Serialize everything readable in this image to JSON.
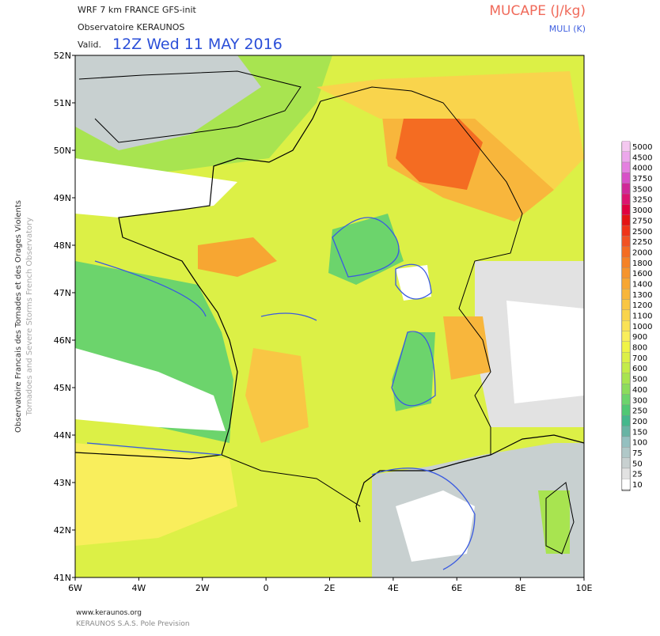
{
  "header": {
    "model": "WRF 7 km FRANCE  GFS-init",
    "source": "Observatoire KERAUNOS",
    "valid_label": "Valid.",
    "valid_time": "12Z Wed 11 MAY 2016",
    "field": "MUCAPE (J/kg)",
    "contour": "MULI (K)"
  },
  "side_text": {
    "french": "Observatoire Francais des Tornades et des Orages Violents",
    "english": "Tornadoes and Severe Storms French Observatory"
  },
  "footer": {
    "url": "www.keraunos.org",
    "company": "KERAUNOS S.A.S. Pole Prevision"
  },
  "map": {
    "lat_labels": [
      "52N",
      "51N",
      "50N",
      "49N",
      "48N",
      "47N",
      "46N",
      "45N",
      "44N",
      "43N",
      "42N",
      "41N"
    ],
    "lon_labels": [
      "6W",
      "4W",
      "2W",
      "0",
      "2E",
      "4E",
      "6E",
      "8E",
      "10E"
    ]
  },
  "colorbar": {
    "levels": [
      "5000",
      "4500",
      "4000",
      "3750",
      "3500",
      "3250",
      "3000",
      "2750",
      "2500",
      "2250",
      "2000",
      "1800",
      "1600",
      "1400",
      "1300",
      "1200",
      "1100",
      "1000",
      "900",
      "800",
      "700",
      "600",
      "500",
      "400",
      "300",
      "250",
      "200",
      "150",
      "100",
      "75",
      "50",
      "25",
      "10"
    ],
    "colors": [
      "#f4c8f0",
      "#eca8ec",
      "#e480e0",
      "#d850c8",
      "#d02898",
      "#dc1470",
      "#e00040",
      "#e41414",
      "#f03418",
      "#f25222",
      "#f46c22",
      "#f58226",
      "#f6942c",
      "#f7a632",
      "#f8b63c",
      "#f9c644",
      "#f9d44c",
      "#fae256",
      "#f9ee5c",
      "#f0f446",
      "#dcf046",
      "#c4ec48",
      "#a8e450",
      "#8cdc5c",
      "#6cd46c",
      "#50c874",
      "#44b88c",
      "#68b4a4",
      "#94c0c0",
      "#b0c8c8",
      "#c8d0d0",
      "#e2e2e2",
      "#ffffff"
    ]
  }
}
